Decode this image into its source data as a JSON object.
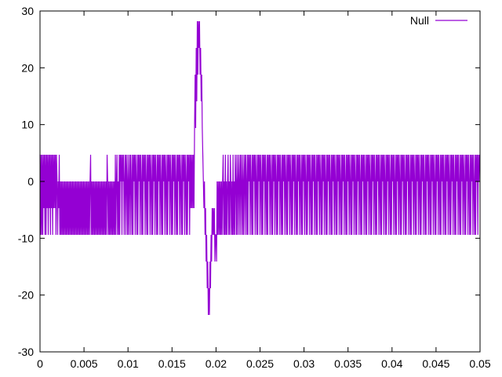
{
  "chart_data": {
    "type": "line",
    "title": "",
    "xlabel": "",
    "ylabel": "",
    "xlim": [
      0,
      0.05
    ],
    "ylim": [
      -30,
      30
    ],
    "x_ticks": [
      "0",
      "0.005",
      "0.01",
      "0.015",
      "0.02",
      "0.025",
      "0.03",
      "0.035",
      "0.04",
      "0.045",
      "0.05"
    ],
    "y_ticks": [
      "-30",
      "-20",
      "-10",
      "0",
      "10",
      "20",
      "30"
    ],
    "legend_position": "top-right",
    "grid": false,
    "series": [
      {
        "name": "Null",
        "color": "#9400d3",
        "x_start": 0,
        "x_step": 6.25e-05,
        "values": [
          4.7,
          -9.4,
          4.7,
          -9.4,
          4.7,
          -9.4,
          4.7,
          -4.7,
          4.7,
          -9.4,
          4.7,
          -9.4,
          4.7,
          -4.7,
          4.7,
          -9.4,
          4.7,
          -4.7,
          4.7,
          -9.4,
          4.7,
          -4.7,
          4.7,
          -9.4,
          4.7,
          -4.7,
          4.7,
          -4.7,
          4.7,
          -9.4,
          4.7,
          0,
          -9.4,
          0,
          -4.7,
          4.7,
          -9.4,
          0,
          -9.4,
          0,
          -9.4,
          0,
          -9.4,
          0,
          -9.4,
          0,
          -9.4,
          0,
          -9.4,
          0,
          -9.4,
          0,
          -9.4,
          0,
          -9.4,
          0,
          -9.4,
          0,
          -9.4,
          0,
          -9.4,
          0,
          -9.4,
          0,
          -9.4,
          0,
          -9.4,
          0,
          -9.4,
          0,
          -9.4,
          0,
          -9.4,
          0,
          -9.4,
          0,
          -9.4,
          0,
          -9.4,
          0,
          -9.4,
          0,
          -9.4,
          0,
          -9.4,
          0,
          -9.4,
          0,
          -9.4,
          0,
          -9.4,
          0,
          4.7,
          -9.4,
          0,
          -9.4,
          0,
          -9.4,
          0,
          -9.4,
          0,
          -9.4,
          0,
          -9.4,
          0,
          -9.4,
          0,
          -9.4,
          0,
          -9.4,
          0,
          -9.4,
          0,
          -9.4,
          0,
          -9.4,
          0,
          -9.4,
          0,
          -9.4,
          0,
          -9.4,
          4.7,
          0,
          -9.4,
          0,
          -9.4,
          0,
          -9.4,
          0,
          -9.4,
          0,
          -9.4,
          0,
          -9.4,
          0,
          -9.4,
          4.7,
          -9.4,
          0,
          4.7,
          -9.4,
          0,
          -9.4,
          4.7,
          -9.4,
          4.7,
          0,
          4.7,
          -9.4,
          4.7,
          0,
          4.7,
          -9.4,
          0,
          4.7,
          -9.4,
          4.7,
          0,
          -9.4,
          4.7,
          -9.4,
          0,
          4.7,
          -9.4,
          4.7,
          0,
          -9.4,
          4.7,
          -9.4,
          4.7,
          0,
          4.7,
          -9.4,
          4.7,
          0,
          -9.4,
          4.7,
          -9.4,
          4.7,
          0,
          4.7,
          -9.4,
          4.7,
          0,
          -9.4,
          4.7,
          -9.4,
          4.7,
          0,
          4.7,
          -9.4,
          4.7,
          0,
          -9.4,
          4.7,
          -9.4,
          4.7,
          0,
          4.7,
          -9.4,
          4.7,
          0,
          -9.4,
          4.7,
          -9.4,
          4.7,
          0,
          4.7,
          -9.4,
          4.7,
          0,
          -9.4,
          4.7,
          -9.4,
          4.7,
          0,
          4.7,
          -9.4,
          4.7,
          0,
          -9.4,
          4.7,
          -9.4,
          4.7,
          0,
          4.7,
          -9.4,
          4.7,
          0,
          -9.4,
          4.7,
          -9.4,
          4.7,
          0,
          4.7,
          -9.4,
          4.7,
          0,
          -9.4,
          4.7,
          -9.4,
          4.7,
          0,
          4.7,
          -9.4,
          4.7,
          0,
          -9.4,
          4.7,
          -9.4,
          4.7,
          0,
          4.7,
          -9.4,
          4.7,
          0,
          -9.4,
          4.7,
          -9.4,
          4.7,
          0,
          4.7,
          -9.4,
          4.7,
          0,
          -9.4,
          4.7,
          -9.4,
          4.7,
          0,
          4.7,
          -9.4,
          4.7,
          -4.7,
          4.7,
          -4.7,
          4.7,
          -4.7,
          4.7,
          -4.7,
          9.4,
          18.8,
          9.4,
          23.5,
          14.1,
          28.2,
          18.8,
          28.2,
          23.5,
          28.2,
          18.8,
          23.5,
          14.1,
          18.8,
          9.4,
          4.7,
          0,
          -4.7,
          0,
          -9.4,
          -4.7,
          -14.1,
          -9.4,
          -18.8,
          -14.1,
          -23.5,
          -18.8,
          -23.5,
          -14.1,
          -18.8,
          -9.4,
          -14.1,
          -4.7,
          -9.4,
          -4.7,
          -9.4,
          -4.7,
          -14.1,
          -9.4,
          -9.4,
          -14.1,
          0,
          -9.4,
          0,
          -9.4,
          0,
          -9.4,
          0,
          -9.4,
          0,
          -9.4,
          0,
          4.7,
          -9.4,
          0,
          -9.4,
          4.7,
          -9.4,
          0,
          -9.4,
          0,
          4.7,
          -9.4,
          0,
          -9.4,
          4.7,
          0,
          -9.4,
          0,
          -9.4,
          4.7,
          -9.4,
          0,
          -9.4,
          4.7,
          0,
          -9.4,
          4.7,
          -9.4,
          0,
          4.7,
          -9.4,
          0,
          4.7,
          -9.4,
          4.7,
          0,
          -9.4,
          4.7,
          -9.4,
          0,
          4.7,
          -9.4,
          4.7,
          0,
          -9.4,
          4.7,
          -9.4,
          4.7,
          0,
          4.7,
          -9.4,
          4.7,
          0,
          -9.4,
          4.7,
          -9.4,
          4.7,
          0,
          4.7,
          -9.4,
          4.7,
          0,
          -9.4,
          4.7,
          -9.4,
          4.7,
          0,
          4.7,
          -9.4,
          4.7,
          0,
          -9.4,
          4.7,
          -9.4,
          4.7,
          0,
          4.7,
          -9.4,
          4.7,
          0,
          -9.4,
          4.7,
          -9.4,
          4.7,
          0,
          4.7,
          -9.4,
          4.7,
          0,
          -9.4,
          4.7,
          -9.4,
          4.7,
          0,
          4.7,
          -9.4,
          4.7,
          0,
          -9.4,
          4.7,
          -9.4,
          4.7,
          0,
          4.7,
          -9.4,
          4.7,
          0,
          -9.4,
          4.7,
          -9.4,
          4.7,
          0,
          4.7,
          -9.4,
          4.7,
          0,
          -9.4,
          4.7,
          -9.4,
          4.7,
          0,
          4.7,
          -9.4,
          4.7,
          0,
          -9.4,
          4.7,
          -9.4,
          4.7,
          0,
          4.7,
          -9.4,
          4.7,
          0,
          -9.4,
          4.7,
          -9.4,
          4.7,
          0,
          4.7,
          -9.4,
          4.7,
          0,
          -9.4,
          4.7,
          -9.4,
          4.7,
          0,
          4.7,
          -9.4,
          4.7,
          0,
          -9.4,
          4.7,
          -9.4,
          4.7,
          0,
          4.7,
          -9.4,
          4.7,
          0,
          -9.4,
          4.7,
          -9.4,
          4.7,
          0,
          4.7,
          -9.4,
          4.7,
          0,
          -9.4,
          4.7,
          -9.4,
          4.7,
          0,
          4.7,
          -9.4,
          4.7,
          0,
          -9.4,
          4.7,
          -9.4,
          4.7,
          0,
          4.7,
          -9.4,
          4.7,
          0,
          -9.4,
          4.7,
          -9.4,
          4.7,
          0,
          4.7,
          -9.4,
          4.7,
          0,
          -9.4,
          4.7,
          -9.4,
          4.7,
          0,
          4.7,
          -9.4,
          4.7,
          0,
          -9.4,
          4.7,
          -9.4,
          4.7,
          0,
          4.7,
          -9.4,
          4.7,
          0,
          -9.4,
          4.7,
          -9.4,
          4.7,
          0,
          4.7,
          -9.4,
          4.7,
          0,
          -9.4,
          4.7,
          -9.4,
          4.7,
          0,
          4.7,
          -9.4,
          4.7,
          0,
          -9.4,
          4.7,
          -9.4,
          4.7,
          0,
          4.7,
          -9.4,
          4.7,
          0,
          -9.4,
          4.7,
          -9.4,
          4.7,
          0,
          4.7,
          -9.4,
          4.7,
          0,
          -9.4,
          4.7,
          -9.4,
          4.7,
          0,
          4.7,
          -9.4,
          4.7,
          0,
          -9.4,
          4.7,
          -9.4,
          4.7,
          0,
          4.7,
          -9.4,
          4.7,
          0,
          -9.4,
          4.7,
          -9.4,
          4.7,
          0,
          4.7,
          -9.4,
          4.7,
          0,
          -9.4,
          4.7,
          -9.4,
          4.7,
          0,
          4.7,
          -9.4,
          4.7,
          0,
          -9.4,
          4.7,
          -9.4,
          4.7,
          0,
          4.7,
          -9.4,
          4.7,
          0,
          -9.4,
          4.7,
          -9.4,
          4.7,
          0,
          4.7,
          -9.4,
          4.7,
          0,
          -9.4,
          4.7,
          -9.4,
          4.7,
          0,
          4.7,
          -9.4,
          4.7,
          0,
          -9.4,
          4.7,
          -9.4,
          4.7,
          0,
          4.7,
          -9.4,
          4.7,
          0,
          -9.4,
          4.7,
          -9.4,
          4.7,
          0,
          4.7,
          -9.4,
          4.7,
          0,
          -9.4,
          4.7,
          -9.4,
          4.7,
          0,
          4.7,
          -9.4,
          4.7,
          0,
          -9.4,
          4.7,
          -9.4,
          4.7,
          0,
          4.7,
          -9.4,
          4.7,
          0,
          -9.4,
          4.7,
          -9.4,
          4.7,
          0,
          4.7,
          -9.4,
          4.7,
          0,
          -9.4,
          4.7,
          -9.4,
          4.7,
          0,
          4.7,
          -9.4,
          4.7,
          0,
          -9.4,
          4.7,
          -9.4,
          4.7,
          0,
          4.7,
          -9.4,
          4.7,
          0,
          -9.4,
          4.7,
          -9.4,
          4.7,
          0,
          4.7,
          -9.4,
          4.7,
          0,
          -9.4,
          4.7,
          -9.4,
          4.7,
          0,
          4.7,
          -9.4,
          4.7,
          0,
          -9.4,
          4.7,
          -9.4,
          4.7,
          0,
          4.7,
          -9.4,
          4.7,
          0,
          -9.4,
          4.7,
          -9.4,
          4.7,
          0,
          4.7,
          -9.4,
          4.7,
          0,
          -9.4,
          4.7,
          -9.4,
          4.7,
          0,
          4.7,
          -9.4,
          4.7,
          0,
          -9.4,
          4.7,
          -9.4,
          4.7,
          0,
          4.7,
          -9.4,
          4.7,
          0,
          -9.4,
          4.7,
          -9.4,
          4.7,
          0,
          4.7,
          -9.4,
          4.7,
          0,
          -9.4,
          4.7,
          -9.4,
          4.7,
          0,
          4.7,
          -9.4,
          4.7,
          0,
          -9.4,
          4.7,
          -9.4,
          4.7,
          0,
          4.7,
          -9.4,
          4.7,
          0,
          -9.4,
          4.7,
          -9.4,
          4.7,
          0,
          4.7,
          -9.4,
          4.7,
          0,
          4.7
        ]
      }
    ]
  }
}
